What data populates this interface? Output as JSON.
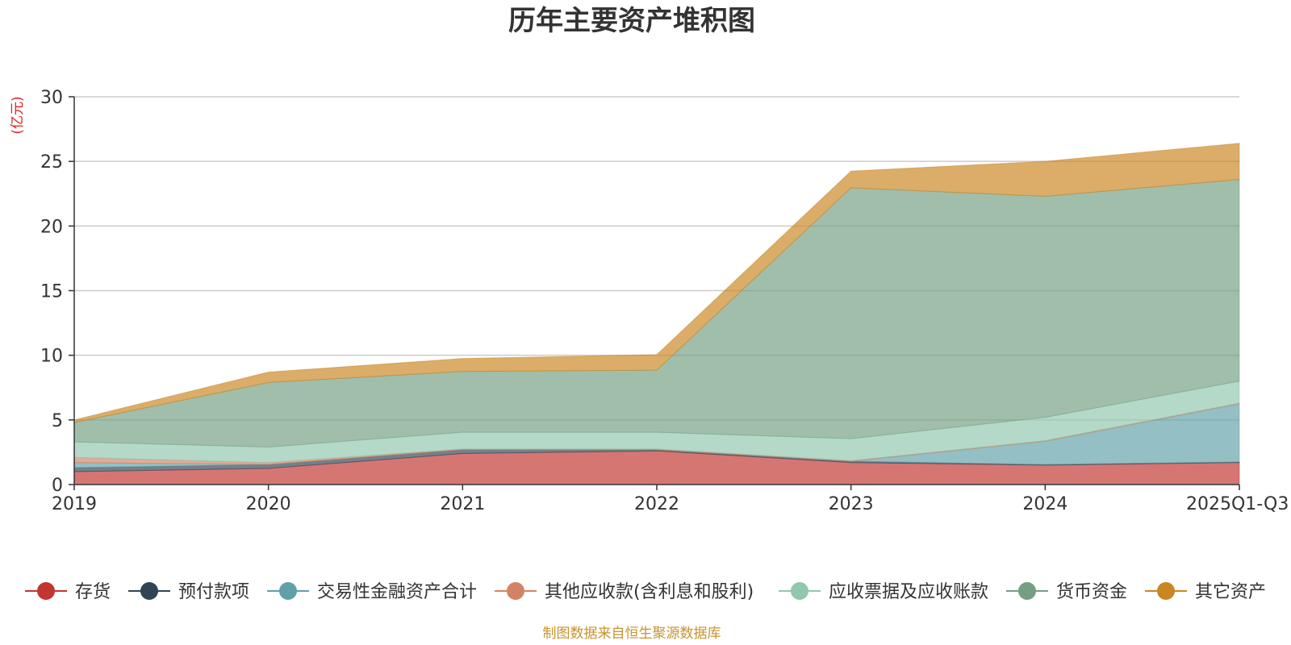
{
  "chart_data": {
    "type": "area",
    "stacked": true,
    "title": "历年主要资产堆积图",
    "ylabel": "(亿元)",
    "xlabel": "",
    "ylim": [
      0,
      30
    ],
    "yticks": [
      0,
      5,
      10,
      15,
      20,
      25,
      30
    ],
    "ytick_labels": [
      "0",
      "5",
      "10",
      "15",
      "20",
      "25",
      "30"
    ],
    "categories": [
      "2019",
      "2020",
      "2021",
      "2022",
      "2023",
      "2024",
      "2025Q1-Q3"
    ],
    "grid": true,
    "legend_position": "bottom",
    "series": [
      {
        "name": "存货",
        "color": "#c23531",
        "values": [
          1.0,
          1.25,
          2.4,
          2.6,
          1.7,
          1.5,
          1.7
        ]
      },
      {
        "name": "预付款项",
        "color": "#2f4554",
        "values": [
          0.3,
          0.3,
          0.3,
          0.1,
          0.1,
          0.05,
          0.05
        ]
      },
      {
        "name": "交易性金融资产合计",
        "color": "#61a0a8",
        "values": [
          0.4,
          0.0,
          0.0,
          0.0,
          0.0,
          1.8,
          4.5
        ]
      },
      {
        "name": "其他应收款(含利息和股利)",
        "color": "#d48265",
        "values": [
          0.4,
          0.15,
          0.05,
          0.05,
          0.05,
          0.05,
          0.05
        ]
      },
      {
        "name": "应收票据及应收账款",
        "color": "#91c7ae",
        "values": [
          1.2,
          1.2,
          1.3,
          1.3,
          1.7,
          1.8,
          1.7
        ]
      },
      {
        "name": "货币资金",
        "color": "#749f83",
        "values": [
          1.5,
          5.0,
          4.7,
          4.8,
          19.4,
          17.1,
          15.6
        ]
      },
      {
        "name": "其它资产",
        "color": "#ca8622",
        "values": [
          0.2,
          0.8,
          1.0,
          1.2,
          1.3,
          2.7,
          2.8
        ]
      }
    ],
    "source": "制图数据来自恒生聚源数据库"
  }
}
